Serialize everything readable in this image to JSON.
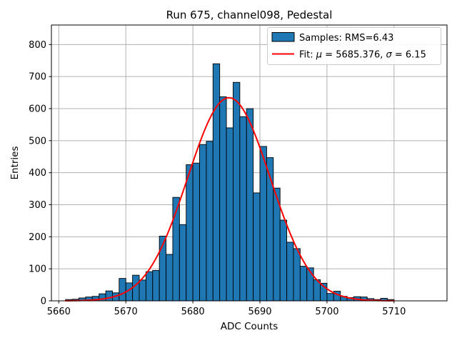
{
  "title": "Run 675, channel098, Pedestal",
  "axes": {
    "xlabel": "ADC Counts",
    "ylabel": "Entries",
    "x_ticks": [
      5660,
      5670,
      5680,
      5690,
      5700,
      5710
    ],
    "y_ticks": [
      0,
      100,
      200,
      300,
      400,
      500,
      600,
      700,
      800
    ],
    "xlim": [
      5658.9,
      5717.9
    ],
    "ylim": [
      0,
      861
    ],
    "grid": true
  },
  "legend": {
    "position": "upper right",
    "items": [
      {
        "label": "Samples: RMS=6.43",
        "marker": "patch",
        "color": "#1f77b4",
        "edge": "#000000"
      },
      {
        "label": "Fit: μ = 5685.376, σ = 6.15",
        "marker": "line",
        "color": "#ff0000"
      }
    ]
  },
  "chart_data": {
    "type": "bar",
    "subtype": "histogram_with_gaussian_fit",
    "title": "Run 675, channel098, Pedestal",
    "xlabel": "ADC Counts",
    "ylabel": "Entries",
    "xlim": [
      5658.9,
      5717.9
    ],
    "ylim": [
      0,
      861
    ],
    "bin_start": 5661,
    "bin_width": 1,
    "counts": [
      4,
      5,
      9,
      12,
      14,
      22,
      31,
      25,
      70,
      56,
      80,
      65,
      91,
      95,
      202,
      145,
      323,
      238,
      425,
      430,
      488,
      498,
      740,
      637,
      540,
      682,
      575,
      600,
      337,
      482,
      447,
      352,
      252,
      183,
      163,
      108,
      103,
      66,
      55,
      23,
      30,
      14,
      10,
      13,
      12,
      7,
      4,
      8,
      4
    ],
    "samples_rms": 6.43,
    "fit": {
      "mu": 5685.376,
      "sigma": 6.15,
      "amplitude": 634,
      "x_min": 5661,
      "x_max": 5710
    }
  },
  "colors": {
    "background": "#ffffff",
    "bar_fill": "#1f77b4",
    "bar_edge": "#000000",
    "fit_line": "#ff0000",
    "grid": "#b0b0b0",
    "spine": "#000000",
    "legend_edge": "#cccccc",
    "legend_face": "#ffffff",
    "text": "#000000"
  }
}
